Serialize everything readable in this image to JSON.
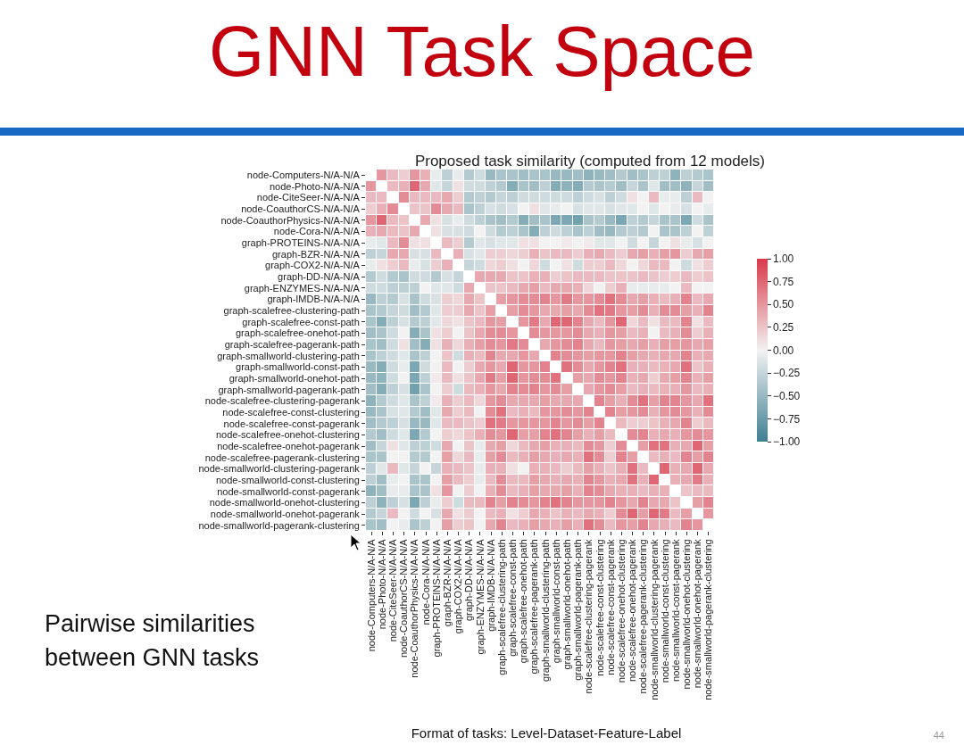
{
  "chart_data": {
    "type": "heatmap",
    "title": "Proposed task similarity (computed from 12 models)",
    "annotations": [
      "GNN Task Space",
      "Pairwise similarities between GNN tasks",
      "Format of tasks: Level-Dataset-Feature-Label",
      "44"
    ],
    "categories": [
      "node-Computers-N/A-N/A",
      "node-Photo-N/A-N/A",
      "node-CiteSeer-N/A-N/A",
      "node-CoauthorCS-N/A-N/A",
      "node-CoauthorPhysics-N/A-N/A",
      "node-Cora-N/A-N/A",
      "graph-PROTEINS-N/A-N/A",
      "graph-BZR-N/A-N/A",
      "graph-COX2-N/A-N/A",
      "graph-DD-N/A-N/A",
      "graph-ENZYMES-N/A-N/A",
      "graph-IMDB-N/A-N/A",
      "graph-scalefree-clustering-path",
      "graph-scalefree-const-path",
      "graph-scalefree-onehot-path",
      "graph-scalefree-pagerank-path",
      "graph-smallworld-clustering-path",
      "graph-smallworld-const-path",
      "graph-smallworld-onehot-path",
      "graph-smallworld-pagerank-path",
      "node-scalefree-clustering-pagerank",
      "node-scalefree-const-clustering",
      "node-scalefree-const-pagerank",
      "node-scalefree-onehot-clustering",
      "node-scalefree-onehot-pagerank",
      "node-scalefree-pagerank-clustering",
      "node-smallworld-clustering-pagerank",
      "node-smallworld-const-clustering",
      "node-smallworld-const-pagerank",
      "node-smallworld-onehot-clustering",
      "node-smallworld-onehot-pagerank",
      "node-smallworld-pagerank-clustering"
    ],
    "y_categories": [
      "node-Computers-N/A-N/A",
      "node-Photo-N/A-N/A",
      "node-CiteSeer-N/A-N/A",
      "node-CoauthorCS-N/A-N/A",
      "node-CoauthorPhysics-N/A-N/A",
      "node-Cora-N/A-N/A",
      "graph-PROTEINS-N/A-N/A",
      "graph-BZR-N/A-N/A",
      "graph-COX2-N/A-N/A",
      "graph-DD-N/A-N/A",
      "graph-ENZYMES-N/A-N/A",
      "graph-IMDB-N/A-N/A",
      "graph-scalefree-clustering-path",
      "graph-scalefree-const-path",
      "graph-scalefree-onehot-path",
      "graph-scalefree-pagerank-path",
      "graph-smallworld-clustering-path",
      "graph-smallworld-const-path",
      "graph-smallworld-onehot-path",
      "graph-smallworld-pagerank-path",
      "node-scalefree-clustering-pagerank",
      "node-scalefree-const-clustering",
      "node-scalefree-const-pagerank",
      "node-scalefree-onehot-clustering",
      "node-scalefree-onehot-pagerank",
      "node-scalefree-pagerank-clustering",
      "node-smallworld-clustering-pagerank",
      "node-smallworld-const-clustering",
      "node-smallworld-const-pagerank",
      "node-smallworld-onehot-clustering",
      "node-smallworld-onehot-pagerank",
      "node-smallworld-pagerank-clustering"
    ],
    "cells": [
      [
        null,
        0.5,
        0.3,
        0.2,
        0.5,
        0.35,
        -0.05,
        -0.3,
        -0.05,
        -0.35,
        -0.2,
        -0.5,
        -0.4,
        -0.4,
        -0.45,
        -0.4,
        -0.4,
        -0.5,
        -0.5,
        -0.45,
        -0.55,
        -0.5,
        -0.45,
        -0.35,
        -0.45,
        -0.4,
        -0.3,
        -0.3,
        -0.55,
        -0.3,
        -0.35,
        -0.4
      ],
      [
        0.5,
        null,
        0.3,
        0.35,
        0.75,
        0.4,
        -0.1,
        -0.25,
        0.1,
        -0.2,
        -0.2,
        -0.3,
        -0.35,
        -0.6,
        -0.4,
        -0.45,
        -0.3,
        -0.6,
        -0.55,
        -0.6,
        -0.35,
        -0.4,
        -0.35,
        -0.45,
        -0.25,
        -0.4,
        -0.1,
        -0.45,
        -0.45,
        -0.55,
        -0.25,
        -0.45
      ],
      [
        0.3,
        0.3,
        null,
        0.55,
        0.3,
        0.3,
        0.3,
        0.4,
        0.2,
        -0.35,
        -0.3,
        -0.35,
        -0.25,
        -0.3,
        -0.2,
        -0.2,
        -0.2,
        -0.2,
        -0.2,
        -0.3,
        -0.2,
        -0.15,
        -0.3,
        -0.2,
        0.1,
        0,
        0.3,
        -0.05,
        -0.05,
        -0.3,
        0.3,
        0
      ],
      [
        0.2,
        0.35,
        0.55,
        null,
        0.25,
        0.25,
        0.55,
        0.4,
        0.3,
        -0.4,
        -0.3,
        -0.15,
        -0.2,
        -0.15,
        0,
        0.1,
        -0.1,
        -0.05,
        0,
        -0.15,
        -0.1,
        -0.1,
        -0.15,
        -0.1,
        -0.1,
        0,
        -0.1,
        0,
        -0.05,
        -0.15,
        0,
        -0.05
      ],
      [
        0.5,
        0.75,
        0.3,
        0.25,
        null,
        0.4,
        0.1,
        -0.15,
        -0.05,
        -0.2,
        -0.3,
        -0.4,
        -0.45,
        -0.35,
        -0.6,
        -0.45,
        -0.4,
        -0.65,
        -0.65,
        -0.7,
        -0.4,
        -0.35,
        -0.5,
        -0.65,
        -0.3,
        -0.35,
        -0.25,
        -0.4,
        -0.4,
        -0.65,
        -0.2,
        -0.4
      ],
      [
        0.35,
        0.4,
        0.3,
        0.25,
        0.4,
        null,
        0.1,
        -0.15,
        -0.15,
        -0.2,
        0,
        -0.2,
        -0.35,
        -0.3,
        -0.4,
        -0.6,
        -0.3,
        -0.2,
        -0.3,
        -0.4,
        -0.3,
        -0.45,
        -0.5,
        -0.35,
        -0.3,
        -0.35,
        0,
        -0.4,
        -0.4,
        -0.3,
        0,
        -0.3
      ],
      [
        -0.05,
        -0.1,
        0.3,
        0.55,
        0.1,
        0.1,
        null,
        0.3,
        0.2,
        -0.35,
        -0.1,
        -0.15,
        -0.1,
        -0.1,
        0.1,
        0.1,
        0,
        0,
        0.05,
        0,
        0.05,
        -0.1,
        -0.1,
        0,
        -0.2,
        0,
        -0.25,
        0,
        0.1,
        -0.05,
        -0.15,
        0
      ],
      [
        -0.3,
        -0.25,
        0.4,
        0.4,
        -0.15,
        -0.15,
        0.3,
        null,
        0.35,
        -0.15,
        -0.1,
        0.2,
        0.2,
        0.15,
        0.2,
        0.35,
        0.25,
        0.3,
        0.3,
        0.2,
        0.35,
        0.4,
        0.3,
        0.2,
        0.4,
        0.45,
        0.35,
        0.45,
        0.5,
        0.2,
        0.4,
        0.45
      ],
      [
        -0.05,
        0.1,
        0.2,
        0.3,
        -0.05,
        -0.15,
        0.2,
        0.35,
        null,
        -0.25,
        -0.2,
        0.15,
        0.2,
        0.1,
        0,
        0.15,
        -0.2,
        0,
        0.1,
        -0.2,
        0.2,
        0.2,
        0.3,
        0.15,
        0,
        0.15,
        0.3,
        0.3,
        0,
        -0.2,
        0.1,
        0.2
      ],
      [
        -0.35,
        -0.2,
        -0.35,
        -0.4,
        -0.2,
        -0.2,
        -0.35,
        -0.15,
        -0.25,
        null,
        0.4,
        0.4,
        0.4,
        0.25,
        0.25,
        0.35,
        0.35,
        0.2,
        0.25,
        0.3,
        0.3,
        0.3,
        0.25,
        0.25,
        0.25,
        0.3,
        0.25,
        0.2,
        0.2,
        0.3,
        0.2,
        0.25
      ],
      [
        -0.2,
        -0.2,
        -0.3,
        -0.3,
        -0.3,
        0,
        -0.1,
        -0.1,
        -0.2,
        0.4,
        null,
        0.25,
        0.25,
        0.3,
        0.4,
        0.45,
        0.3,
        0.4,
        0.4,
        0.35,
        0.15,
        0,
        0.2,
        0.35,
        -0.05,
        -0.05,
        -0.05,
        -0.05,
        0,
        0.3,
        0,
        0
      ],
      [
        -0.5,
        -0.3,
        -0.35,
        -0.15,
        -0.4,
        -0.2,
        -0.15,
        0.2,
        0.15,
        0.4,
        0.25,
        null,
        0.45,
        0.5,
        0.55,
        0.55,
        0.6,
        0.5,
        0.65,
        0.5,
        0.5,
        0.55,
        0.7,
        0.55,
        0.4,
        0.45,
        0.35,
        0.3,
        0.35,
        0.6,
        0.3,
        0.4
      ],
      [
        -0.4,
        -0.35,
        -0.25,
        -0.2,
        -0.45,
        -0.35,
        -0.1,
        0.2,
        0.2,
        0.4,
        0.25,
        0.45,
        null,
        0.45,
        0.55,
        0.5,
        0.4,
        0.4,
        0.45,
        0.4,
        0.55,
        0.7,
        0.65,
        0.5,
        0.45,
        0.55,
        0.35,
        0.55,
        0.55,
        0.45,
        0.35,
        0.6
      ],
      [
        -0.4,
        -0.6,
        -0.3,
        -0.15,
        -0.35,
        -0.3,
        -0.1,
        0.15,
        0.1,
        0.25,
        0.3,
        0.5,
        0.45,
        null,
        0.5,
        0.65,
        0.4,
        0.75,
        0.75,
        0.6,
        0.4,
        0.3,
        0.5,
        0.75,
        0.15,
        0.3,
        0.1,
        0.3,
        0.3,
        0.6,
        0.1,
        0.3
      ],
      [
        -0.45,
        -0.4,
        -0.2,
        0,
        -0.6,
        -0.4,
        0.1,
        0.2,
        0,
        0.25,
        0.4,
        0.55,
        0.55,
        0.5,
        null,
        0.55,
        0.5,
        0.5,
        0.5,
        0.55,
        0.4,
        0.35,
        0.5,
        0.45,
        0.3,
        0.35,
        0,
        0.3,
        0.35,
        0.55,
        0.2,
        0.35
      ],
      [
        -0.4,
        -0.45,
        -0.2,
        0.1,
        -0.45,
        -0.6,
        0.1,
        0.35,
        0.15,
        0.35,
        0.45,
        0.55,
        0.5,
        0.65,
        0.55,
        null,
        0.4,
        0.5,
        0.55,
        0.6,
        0.4,
        0.3,
        0.5,
        0.45,
        0.4,
        0.45,
        0.35,
        0.45,
        0.45,
        0.5,
        0.4,
        0.45
      ],
      [
        -0.4,
        -0.3,
        -0.2,
        -0.1,
        -0.4,
        -0.3,
        0,
        0.25,
        -0.2,
        0.35,
        0.3,
        0.6,
        0.4,
        0.4,
        0.5,
        0.4,
        null,
        0.6,
        0.55,
        0.5,
        0.45,
        0.5,
        0.5,
        0.6,
        0.45,
        0.4,
        0.35,
        0.4,
        0.4,
        0.6,
        0.35,
        0.4
      ],
      [
        -0.5,
        -0.6,
        -0.2,
        -0.05,
        -0.65,
        -0.2,
        0,
        0.3,
        0,
        0.2,
        0.4,
        0.5,
        0.4,
        0.75,
        0.5,
        0.5,
        0.6,
        null,
        0.7,
        0.55,
        0.4,
        0.5,
        0.6,
        0.7,
        0.35,
        0.35,
        0.3,
        0.35,
        0.4,
        0.7,
        0.25,
        0.35
      ],
      [
        -0.5,
        -0.55,
        -0.2,
        0,
        -0.65,
        -0.3,
        0.05,
        0.3,
        0.1,
        0.25,
        0.4,
        0.65,
        0.45,
        0.75,
        0.5,
        0.55,
        0.55,
        0.7,
        null,
        0.45,
        0.4,
        0.55,
        0.5,
        0.6,
        0.35,
        0.4,
        0.2,
        0.4,
        0.45,
        0.6,
        0.35,
        0.45
      ],
      [
        -0.45,
        -0.6,
        -0.3,
        -0.15,
        -0.7,
        -0.4,
        0,
        0.2,
        -0.2,
        0.3,
        0.35,
        0.5,
        0.4,
        0.6,
        0.55,
        0.6,
        0.5,
        0.55,
        0.45,
        null,
        0.4,
        0.5,
        0.55,
        0.45,
        0.3,
        0.35,
        0.3,
        0.35,
        0.35,
        0.5,
        0.3,
        0.35
      ],
      [
        -0.55,
        -0.35,
        -0.2,
        -0.1,
        -0.4,
        -0.3,
        0.05,
        0.35,
        0.2,
        0.3,
        0.15,
        0.5,
        0.55,
        0.4,
        0.4,
        0.4,
        0.45,
        0.4,
        0.4,
        0.4,
        null,
        0.6,
        0.45,
        0.35,
        0.55,
        0.7,
        0.45,
        0.6,
        0.6,
        0.5,
        0.4,
        0.7
      ],
      [
        -0.5,
        -0.4,
        -0.15,
        -0.1,
        -0.35,
        -0.45,
        -0.1,
        0.4,
        0.2,
        0.3,
        0,
        0.55,
        0.7,
        0.3,
        0.35,
        0.3,
        0.5,
        0.5,
        0.55,
        0.5,
        0.6,
        null,
        0.6,
        0.45,
        0.5,
        0.55,
        0.35,
        0.5,
        0.55,
        0.5,
        0.35,
        0.55
      ],
      [
        -0.45,
        -0.35,
        -0.3,
        -0.15,
        -0.5,
        -0.5,
        -0.1,
        0.3,
        0.3,
        0.25,
        0.2,
        0.7,
        0.65,
        0.5,
        0.5,
        0.5,
        0.5,
        0.6,
        0.5,
        0.55,
        0.45,
        0.6,
        null,
        0.3,
        0.2,
        0.2,
        0.25,
        0.35,
        0.4,
        0.6,
        0.2,
        0.3
      ],
      [
        -0.35,
        -0.45,
        -0.2,
        -0.1,
        -0.65,
        -0.35,
        0,
        0.2,
        0.15,
        0.25,
        0.35,
        0.55,
        0.5,
        0.75,
        0.45,
        0.45,
        0.6,
        0.7,
        0.6,
        0.45,
        0.35,
        0.45,
        0.3,
        null,
        0.55,
        0.6,
        0.35,
        0.4,
        0.35,
        0.5,
        0.55,
        0.5
      ],
      [
        -0.45,
        -0.25,
        0.1,
        -0.1,
        -0.3,
        -0.3,
        -0.2,
        0.4,
        0,
        0.25,
        -0.05,
        0.4,
        0.45,
        0.15,
        0.3,
        0.4,
        0.45,
        0.35,
        0.35,
        0.3,
        0.55,
        0.5,
        0.2,
        0.55,
        null,
        0.45,
        0.7,
        0.7,
        0.35,
        0.4,
        0.75,
        0.45
      ],
      [
        -0.4,
        -0.4,
        0,
        0,
        -0.35,
        -0.35,
        0,
        0.45,
        0.15,
        0.3,
        -0.05,
        0.45,
        0.55,
        0.3,
        0.35,
        0.45,
        0.4,
        0.35,
        0.4,
        0.35,
        0.7,
        0.55,
        0.2,
        0.6,
        0.45,
        null,
        0.3,
        0.35,
        0.3,
        0.6,
        0.45,
        0.6
      ],
      [
        -0.3,
        -0.1,
        0.3,
        -0.1,
        -0.25,
        0,
        -0.25,
        0.35,
        0.3,
        0.25,
        -0.05,
        0.35,
        0.35,
        0.1,
        0,
        0.35,
        0.35,
        0.3,
        0.2,
        0.3,
        0.45,
        0.35,
        0.25,
        0.35,
        0.7,
        0.3,
        null,
        0.75,
        0.35,
        0.4,
        0.75,
        0.4
      ],
      [
        -0.3,
        -0.45,
        -0.05,
        0,
        -0.4,
        -0.4,
        0,
        0.45,
        0.3,
        0.2,
        -0.05,
        0.3,
        0.55,
        0.3,
        0.3,
        0.45,
        0.4,
        0.35,
        0.4,
        0.35,
        0.6,
        0.5,
        0.35,
        0.4,
        0.7,
        0.35,
        0.75,
        null,
        0.35,
        0.4,
        0.65,
        0.35
      ],
      [
        -0.55,
        -0.45,
        -0.05,
        -0.05,
        -0.4,
        -0.4,
        0.1,
        0.5,
        0,
        0.2,
        0,
        0.35,
        0.55,
        0.3,
        0.35,
        0.45,
        0.4,
        0.4,
        0.45,
        0.35,
        0.6,
        0.55,
        0.4,
        0.35,
        0.35,
        0.3,
        0.35,
        0.35,
        null,
        0.25,
        0.3,
        0.3
      ],
      [
        -0.3,
        -0.55,
        -0.3,
        -0.15,
        -0.65,
        -0.3,
        -0.05,
        0.2,
        -0.2,
        0.3,
        0.3,
        0.6,
        0.45,
        0.6,
        0.55,
        0.5,
        0.6,
        0.7,
        0.6,
        0.5,
        0.5,
        0.5,
        0.6,
        0.5,
        0.4,
        0.6,
        0.4,
        0.4,
        0.25,
        null,
        0.45,
        0.6
      ],
      [
        -0.35,
        -0.25,
        0.3,
        0,
        -0.2,
        0,
        -0.15,
        0.4,
        0.1,
        0.2,
        0,
        0.3,
        0.35,
        0.1,
        0.2,
        0.4,
        0.35,
        0.25,
        0.35,
        0.3,
        0.4,
        0.35,
        0.2,
        0.55,
        0.75,
        0.45,
        0.75,
        0.65,
        0.3,
        0.45,
        null,
        0.5
      ],
      [
        -0.4,
        -0.45,
        0,
        -0.05,
        -0.4,
        -0.3,
        0,
        0.45,
        0.2,
        0.25,
        0,
        0.4,
        0.6,
        0.3,
        0.35,
        0.45,
        0.4,
        0.35,
        0.45,
        0.35,
        0.7,
        0.55,
        0.3,
        0.5,
        0.45,
        0.6,
        0.4,
        0.35,
        0.3,
        0.6,
        0.5,
        null
      ]
    ],
    "clim": [
      -1,
      1
    ],
    "cticks": [
      {
        "value": 1,
        "label": "1.00"
      },
      {
        "value": 0.75,
        "label": "0.75"
      },
      {
        "value": 0.5,
        "label": "0.50"
      },
      {
        "value": 0.25,
        "label": "0.25"
      },
      {
        "value": 0,
        "label": "0.00"
      },
      {
        "value": -0.25,
        "label": "−0.25"
      },
      {
        "value": -0.5,
        "label": "−0.50"
      },
      {
        "value": -0.75,
        "label": "−0.75"
      },
      {
        "value": -1,
        "label": "−1.00"
      }
    ]
  }
}
